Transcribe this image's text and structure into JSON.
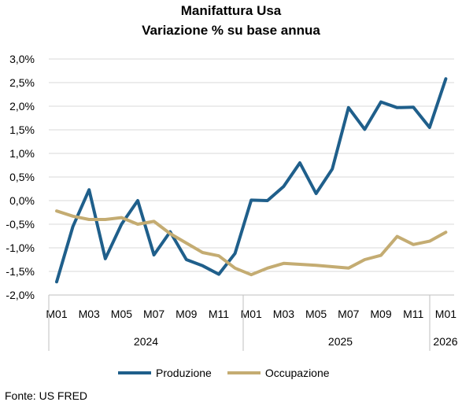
{
  "chart_data": {
    "type": "line",
    "title": "Manifattura Usa",
    "subtitle": "Variazione % su base annua",
    "x": [
      "M01",
      "M02",
      "M03",
      "M04",
      "M05",
      "M06",
      "M07",
      "M08",
      "M09",
      "M10",
      "M11",
      "M12",
      "M01",
      "M02",
      "M03",
      "M04",
      "M05",
      "M06",
      "M07",
      "M08",
      "M09",
      "M10",
      "M11",
      "M12",
      "M01"
    ],
    "x_tick_labels": [
      "M01",
      "M03",
      "M05",
      "M07",
      "M09",
      "M11",
      "M01",
      "M03",
      "M05",
      "M07",
      "M09",
      "M11",
      "M01"
    ],
    "year_labels": [
      "2024",
      "2025",
      "2026"
    ],
    "y_tick_labels": [
      "3,0%",
      "2,5%",
      "2,0%",
      "1,5%",
      "1,0%",
      "0,5%",
      "0,0%",
      "-0,5%",
      "-1,0%",
      "-1,5%",
      "-2,0%"
    ],
    "ylim": [
      -2.0,
      3.0
    ],
    "grid": true,
    "legend_position": "bottom",
    "series": [
      {
        "name": "Produzione",
        "color": "#1f5f8b",
        "values": [
          -1.72,
          -0.55,
          0.23,
          -1.23,
          -0.5,
          0.0,
          -1.15,
          -0.66,
          -1.25,
          -1.38,
          -1.56,
          -1.12,
          0.01,
          0.0,
          0.3,
          0.8,
          0.15,
          0.67,
          1.97,
          1.51,
          2.09,
          1.97,
          1.98,
          1.55,
          2.58
        ]
      },
      {
        "name": "Occupazione",
        "color": "#c4ac72",
        "values": [
          -0.22,
          -0.33,
          -0.4,
          -0.4,
          -0.36,
          -0.5,
          -0.44,
          -0.7,
          -0.9,
          -1.1,
          -1.17,
          -1.43,
          -1.57,
          -1.43,
          -1.33,
          -1.35,
          -1.37,
          -1.4,
          -1.43,
          -1.25,
          -1.16,
          -0.76,
          -0.93,
          -0.86,
          -0.67
        ]
      }
    ]
  },
  "source": "Fonte: US FRED"
}
